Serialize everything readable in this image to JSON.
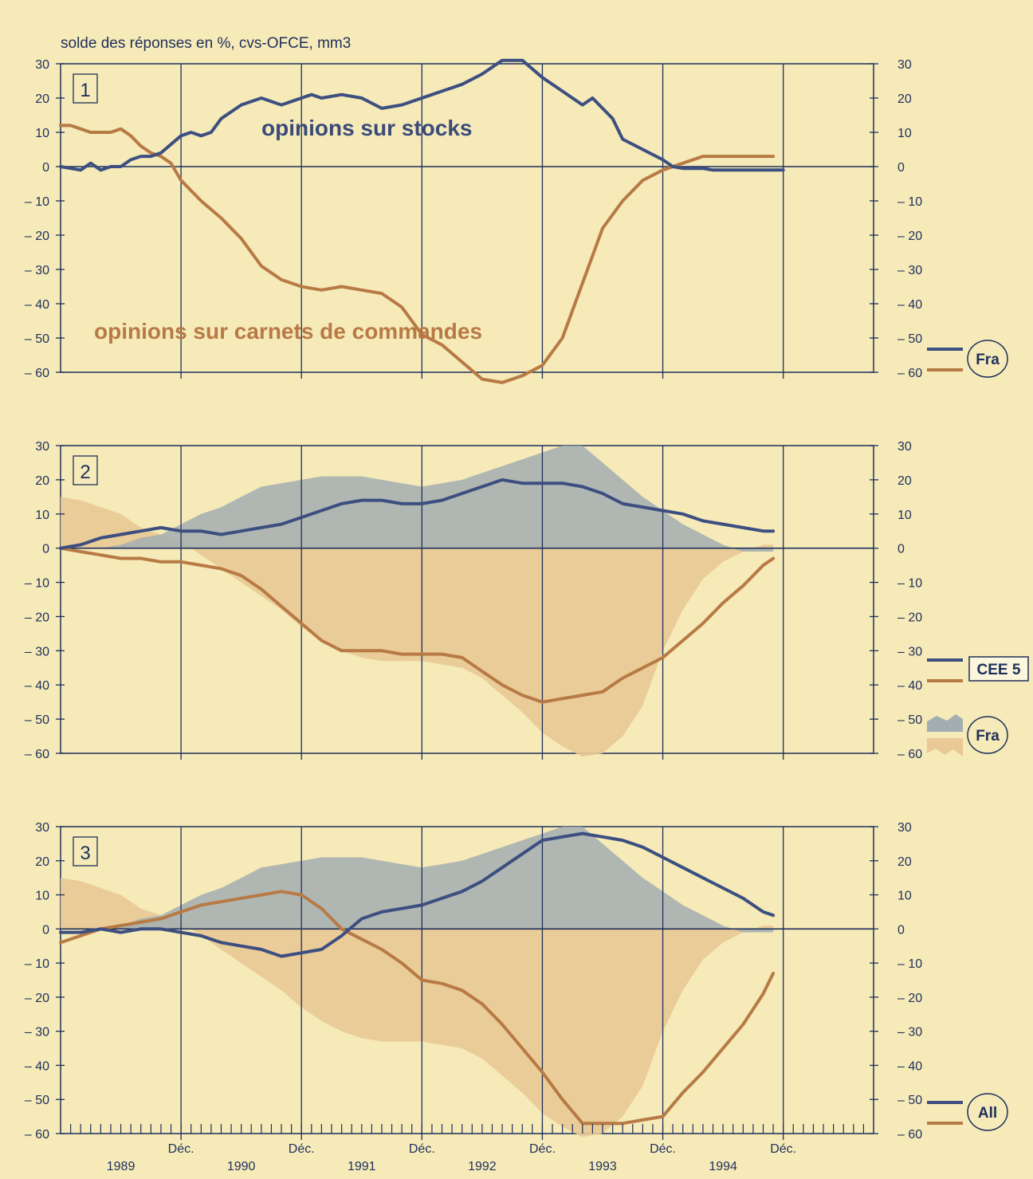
{
  "caption": "solde des réponses en %, cvs-OFCE, mm3",
  "colors": {
    "axis": "#1f2f5c",
    "stocks": "#3d4f80",
    "orders": "#b87a45",
    "stocks_area": "#a3aeb0",
    "orders_area": "#e9c995",
    "background": "#f5eab8"
  },
  "x_axis": {
    "dec_label": "Déc.",
    "dec_ticks": [
      12,
      24,
      36,
      48,
      60,
      72
    ],
    "year_labels": [
      "1989",
      "1990",
      "1991",
      "1992",
      "1993",
      "1994"
    ],
    "month_index_note": "month 0 = January 1989"
  },
  "chart_data": [
    {
      "type": "line",
      "panel_label": "1",
      "legend": "Fra",
      "annotations": {
        "stocks": "opinions sur stocks",
        "orders": "opinions sur carnets de commandes"
      },
      "ylim": [
        -60,
        30
      ],
      "yticks": [
        30,
        20,
        10,
        0,
        -10,
        -20,
        -30,
        -40,
        -50,
        -60
      ],
      "series": [
        {
          "key": "stocks",
          "x": [
            0,
            2,
            3,
            4,
            5,
            6,
            7,
            8,
            9,
            10,
            12,
            13,
            14,
            15,
            16,
            18,
            20,
            22,
            23,
            24,
            25,
            26,
            28,
            30,
            32,
            34,
            36,
            37,
            38,
            40,
            42,
            44,
            46,
            48,
            50,
            52,
            53,
            54,
            55,
            56,
            58,
            60,
            61,
            62,
            64,
            65,
            66,
            68,
            70,
            71,
            72
          ],
          "values": [
            0,
            -1,
            1,
            -1,
            0,
            0,
            2,
            3,
            3,
            4,
            9,
            10,
            9,
            10,
            14,
            18,
            20,
            18,
            19,
            20,
            21,
            20,
            21,
            20,
            17,
            18,
            20,
            21,
            22,
            24,
            27,
            31,
            31,
            26,
            22,
            18,
            20,
            17,
            14,
            8,
            5,
            2,
            0,
            -0.5,
            -0.5,
            -1,
            -1,
            -1,
            -1,
            -1,
            -1
          ]
        },
        {
          "key": "orders",
          "x": [
            0,
            1,
            2,
            3,
            4,
            5,
            6,
            7,
            8,
            9,
            10,
            11,
            12,
            14,
            16,
            18,
            20,
            22,
            24,
            26,
            28,
            30,
            32,
            34,
            36,
            38,
            40,
            42,
            44,
            46,
            48,
            50,
            52,
            54,
            56,
            58,
            60,
            62,
            64,
            66,
            68,
            70,
            71
          ],
          "values": [
            12,
            12,
            11,
            10,
            10,
            10,
            11,
            9,
            6,
            4,
            3,
            1,
            -4,
            -10,
            -15,
            -21,
            -29,
            -33,
            -35,
            -36,
            -35,
            -36,
            -37,
            -41,
            -49,
            -52,
            -57,
            -62,
            -63,
            -61,
            -58,
            -50,
            -34,
            -18,
            -10,
            -4,
            -1,
            1,
            3,
            3,
            3,
            3,
            3
          ]
        }
      ]
    },
    {
      "type": "line",
      "panel_label": "2",
      "legend": "CEE 5",
      "legend_area": "Fra",
      "ylim": [
        -60,
        30
      ],
      "yticks": [
        30,
        20,
        10,
        0,
        -10,
        -20,
        -30,
        -40,
        -50,
        -60
      ],
      "series": [
        {
          "key": "stocks",
          "x": [
            0,
            2,
            4,
            6,
            8,
            10,
            12,
            14,
            16,
            18,
            20,
            22,
            24,
            26,
            28,
            30,
            32,
            34,
            36,
            38,
            40,
            42,
            44,
            46,
            48,
            50,
            52,
            54,
            56,
            58,
            60,
            62,
            64,
            66,
            68,
            70,
            71
          ],
          "values": [
            0,
            1,
            3,
            4,
            5,
            6,
            5,
            5,
            4,
            5,
            6,
            7,
            9,
            11,
            13,
            14,
            14,
            13,
            13,
            14,
            16,
            18,
            20,
            19,
            19,
            19,
            18,
            16,
            13,
            12,
            11,
            10,
            8,
            7,
            6,
            5,
            5
          ]
        },
        {
          "key": "orders",
          "x": [
            0,
            2,
            4,
            6,
            8,
            10,
            12,
            14,
            16,
            18,
            20,
            22,
            24,
            26,
            28,
            30,
            32,
            34,
            36,
            38,
            40,
            42,
            44,
            46,
            48,
            50,
            52,
            54,
            56,
            58,
            60,
            62,
            64,
            66,
            68,
            70,
            71
          ],
          "values": [
            0,
            -1,
            -2,
            -3,
            -3,
            -4,
            -4,
            -5,
            -6,
            -8,
            -12,
            -17,
            -22,
            -27,
            -30,
            -30,
            -30,
            -31,
            -31,
            -31,
            -32,
            -36,
            -40,
            -43,
            -45,
            -44,
            -43,
            -42,
            -38,
            -35,
            -32,
            -27,
            -22,
            -16,
            -11,
            -5,
            -3
          ]
        },
        {
          "key": "stocks_area",
          "x": [
            0,
            2,
            4,
            6,
            8,
            10,
            12,
            14,
            16,
            18,
            20,
            22,
            24,
            26,
            28,
            30,
            32,
            34,
            36,
            38,
            40,
            42,
            44,
            46,
            48,
            50,
            52,
            54,
            56,
            58,
            60,
            62,
            64,
            66,
            68,
            70,
            71
          ],
          "values": [
            0,
            0,
            0,
            1,
            3,
            4,
            7,
            10,
            12,
            15,
            18,
            19,
            20,
            21,
            21,
            21,
            20,
            19,
            18,
            19,
            20,
            22,
            24,
            26,
            28,
            30,
            30,
            25,
            20,
            15,
            11,
            7,
            4,
            1,
            -1,
            -1,
            -1
          ]
        },
        {
          "key": "orders_area",
          "x": [
            0,
            2,
            4,
            6,
            8,
            10,
            12,
            14,
            16,
            18,
            20,
            22,
            24,
            26,
            28,
            30,
            32,
            34,
            36,
            38,
            40,
            42,
            44,
            46,
            48,
            50,
            52,
            54,
            56,
            58,
            60,
            62,
            64,
            66,
            68,
            70,
            71
          ],
          "values": [
            15,
            14,
            12,
            10,
            6,
            4,
            2,
            -2,
            -6,
            -10,
            -14,
            -18,
            -23,
            -27,
            -30,
            -32,
            -33,
            -33,
            -33,
            -34,
            -35,
            -38,
            -43,
            -48,
            -54,
            -58,
            -61,
            -60,
            -55,
            -46,
            -30,
            -18,
            -9,
            -4,
            -1,
            1,
            1
          ]
        }
      ]
    },
    {
      "type": "line",
      "panel_label": "3",
      "legend": "All",
      "ylim": [
        -60,
        30
      ],
      "yticks": [
        30,
        20,
        10,
        0,
        -10,
        -20,
        -30,
        -40,
        -50,
        -60
      ],
      "series": [
        {
          "key": "stocks",
          "x": [
            0,
            2,
            4,
            6,
            8,
            10,
            12,
            14,
            16,
            18,
            20,
            22,
            24,
            26,
            28,
            30,
            32,
            34,
            36,
            38,
            40,
            42,
            44,
            46,
            48,
            50,
            52,
            54,
            56,
            58,
            60,
            62,
            64,
            66,
            68,
            70,
            71
          ],
          "values": [
            -1,
            -1,
            0,
            -1,
            0,
            0,
            -1,
            -2,
            -4,
            -5,
            -6,
            -8,
            -7,
            -6,
            -2,
            3,
            5,
            6,
            7,
            9,
            11,
            14,
            18,
            22,
            26,
            27,
            28,
            27,
            26,
            24,
            21,
            18,
            15,
            12,
            9,
            5,
            4
          ]
        },
        {
          "key": "orders",
          "x": [
            0,
            2,
            4,
            6,
            8,
            10,
            12,
            14,
            16,
            18,
            20,
            22,
            24,
            26,
            28,
            30,
            32,
            34,
            36,
            38,
            40,
            42,
            44,
            46,
            48,
            50,
            52,
            54,
            56,
            58,
            60,
            62,
            64,
            66,
            68,
            70,
            71
          ],
          "values": [
            -4,
            -2,
            0,
            1,
            2,
            3,
            5,
            7,
            8,
            9,
            10,
            11,
            10,
            6,
            0,
            -3,
            -6,
            -10,
            -15,
            -16,
            -18,
            -22,
            -28,
            -35,
            -42,
            -50,
            -57,
            -57,
            -57,
            -56,
            -55,
            -48,
            -42,
            -35,
            -28,
            -19,
            -13
          ]
        },
        {
          "key": "stocks_area",
          "x": [
            0,
            2,
            4,
            6,
            8,
            10,
            12,
            14,
            16,
            18,
            20,
            22,
            24,
            26,
            28,
            30,
            32,
            34,
            36,
            38,
            40,
            42,
            44,
            46,
            48,
            50,
            52,
            54,
            56,
            58,
            60,
            62,
            64,
            66,
            68,
            70,
            71
          ],
          "values": [
            0,
            0,
            0,
            1,
            3,
            4,
            7,
            10,
            12,
            15,
            18,
            19,
            20,
            21,
            21,
            21,
            20,
            19,
            18,
            19,
            20,
            22,
            24,
            26,
            28,
            30,
            30,
            25,
            20,
            15,
            11,
            7,
            4,
            1,
            -1,
            -1,
            -1
          ]
        },
        {
          "key": "orders_area",
          "x": [
            0,
            2,
            4,
            6,
            8,
            10,
            12,
            14,
            16,
            18,
            20,
            22,
            24,
            26,
            28,
            30,
            32,
            34,
            36,
            38,
            40,
            42,
            44,
            46,
            48,
            50,
            52,
            54,
            56,
            58,
            60,
            62,
            64,
            66,
            68,
            70,
            71
          ],
          "values": [
            15,
            14,
            12,
            10,
            6,
            4,
            2,
            -2,
            -6,
            -10,
            -14,
            -18,
            -23,
            -27,
            -30,
            -32,
            -33,
            -33,
            -33,
            -34,
            -35,
            -38,
            -43,
            -48,
            -54,
            -58,
            -61,
            -60,
            -55,
            -46,
            -30,
            -18,
            -9,
            -4,
            -1,
            1,
            1
          ]
        }
      ]
    }
  ]
}
